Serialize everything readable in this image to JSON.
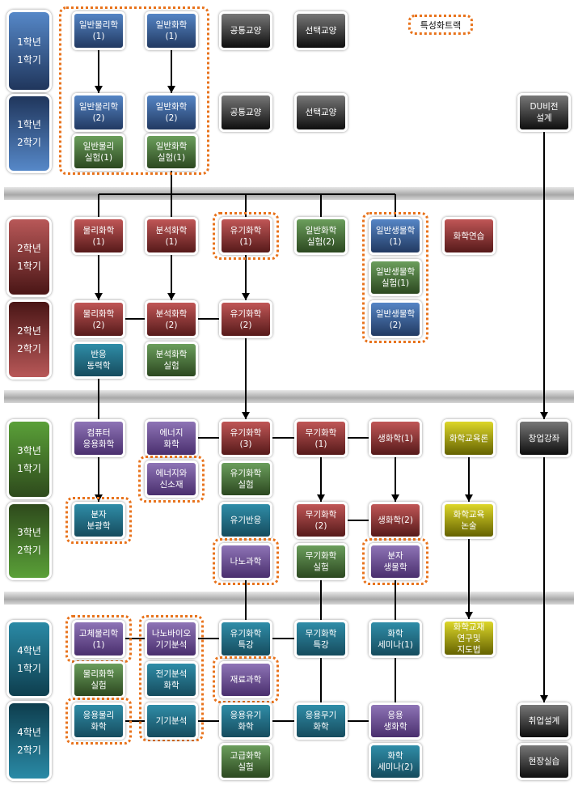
{
  "legend": {
    "label": "특성화트랙",
    "color": "#e8731c"
  },
  "semesters": [
    {
      "label": "1학년\n1학기",
      "color": "#4f7fbf"
    },
    {
      "label": "1학년\n2학기",
      "color": "#4f7fbf"
    },
    {
      "label": "2학년\n1학기",
      "color": "#a84848"
    },
    {
      "label": "2학년\n2학기",
      "color": "#a84848"
    },
    {
      "label": "3학년\n1학기",
      "color": "#5a9a3a"
    },
    {
      "label": "3학년\n2학기",
      "color": "#5a9a3a"
    },
    {
      "label": "4학년\n1학기",
      "color": "#2a7a94"
    },
    {
      "label": "4학년\n2학기",
      "color": "#2a7a94"
    }
  ],
  "boxes": [
    {
      "label": "일반물리학\n(1)",
      "color": "blue"
    },
    {
      "label": "일반화학\n(1)",
      "color": "blue"
    },
    {
      "label": "공통교양",
      "color": "dark"
    },
    {
      "label": "선택교양",
      "color": "dark"
    },
    {
      "label": "일반물리학\n(2)",
      "color": "blue"
    },
    {
      "label": "일반화학\n(2)",
      "color": "blue"
    },
    {
      "label": "공통교양",
      "color": "dark"
    },
    {
      "label": "선택교양",
      "color": "dark"
    },
    {
      "label": "DU비전\n설계",
      "color": "dark"
    },
    {
      "label": "일반물리\n실험(1)",
      "color": "green"
    },
    {
      "label": "일반화학\n실험(1)",
      "color": "green"
    },
    {
      "label": "물리화학\n(1)",
      "color": "red"
    },
    {
      "label": "분석화학\n(1)",
      "color": "red"
    },
    {
      "label": "유기화학\n(1)",
      "color": "red",
      "track": true
    },
    {
      "label": "일반화학\n실험(2)",
      "color": "green"
    },
    {
      "label": "일반생물학\n(1)",
      "color": "blue"
    },
    {
      "label": "화학연습",
      "color": "red"
    },
    {
      "label": "일반생물학\n실험(1)",
      "color": "green"
    },
    {
      "label": "물리화학\n(2)",
      "color": "red"
    },
    {
      "label": "분석화학\n(2)",
      "color": "red"
    },
    {
      "label": "유기화학\n(2)",
      "color": "red"
    },
    {
      "label": "일반생물학\n(2)",
      "color": "blue"
    },
    {
      "label": "반응\n동력학",
      "color": "teal"
    },
    {
      "label": "분석화학\n실험",
      "color": "green"
    },
    {
      "label": "컴퓨터\n응용화학",
      "color": "purple"
    },
    {
      "label": "에너지\n화학",
      "color": "purple"
    },
    {
      "label": "유기화학\n(3)",
      "color": "red"
    },
    {
      "label": "무기화학\n(1)",
      "color": "red"
    },
    {
      "label": "생화학(1)",
      "color": "red"
    },
    {
      "label": "화학교육론",
      "color": "yellow"
    },
    {
      "label": "창업강좌",
      "color": "dark"
    },
    {
      "label": "에너지와\n신소재",
      "color": "purple",
      "track": true
    },
    {
      "label": "유기화학\n실험",
      "color": "green"
    },
    {
      "label": "분자\n분광학",
      "color": "teal",
      "track": true
    },
    {
      "label": "유기반응",
      "color": "teal"
    },
    {
      "label": "무기화학\n(2)",
      "color": "red"
    },
    {
      "label": "생화학(2)",
      "color": "red"
    },
    {
      "label": "화학교육\n논술",
      "color": "yellow"
    },
    {
      "label": "나노과학",
      "color": "purple",
      "track": true
    },
    {
      "label": "무기화학\n실험",
      "color": "green"
    },
    {
      "label": "분자\n생물학",
      "color": "purple",
      "track": true
    },
    {
      "label": "고체물리학\n(1)",
      "color": "purple",
      "track": true
    },
    {
      "label": "나노바이오\n기기분석",
      "color": "purple"
    },
    {
      "label": "유기화학\n특강",
      "color": "teal"
    },
    {
      "label": "무기화학\n특강",
      "color": "teal"
    },
    {
      "label": "화학\n세미나(1)",
      "color": "teal"
    },
    {
      "label": "화학교재\n연구및\n지도법",
      "color": "yellow"
    },
    {
      "label": "물리화학\n실험",
      "color": "green"
    },
    {
      "label": "전기분석\n화학",
      "color": "teal"
    },
    {
      "label": "재료과학",
      "color": "purple",
      "track": true
    },
    {
      "label": "응용물리\n화학",
      "color": "teal",
      "track": true
    },
    {
      "label": "기기분석",
      "color": "teal"
    },
    {
      "label": "응용유기\n화학",
      "color": "teal"
    },
    {
      "label": "응용무기\n화학",
      "color": "teal"
    },
    {
      "label": "응용\n생화학",
      "color": "purple"
    },
    {
      "label": "취업설계",
      "color": "dark"
    },
    {
      "label": "고급화학\n실험",
      "color": "green"
    },
    {
      "label": "화학\n세미나(2)",
      "color": "teal"
    },
    {
      "label": "현장실습",
      "color": "dark"
    }
  ]
}
